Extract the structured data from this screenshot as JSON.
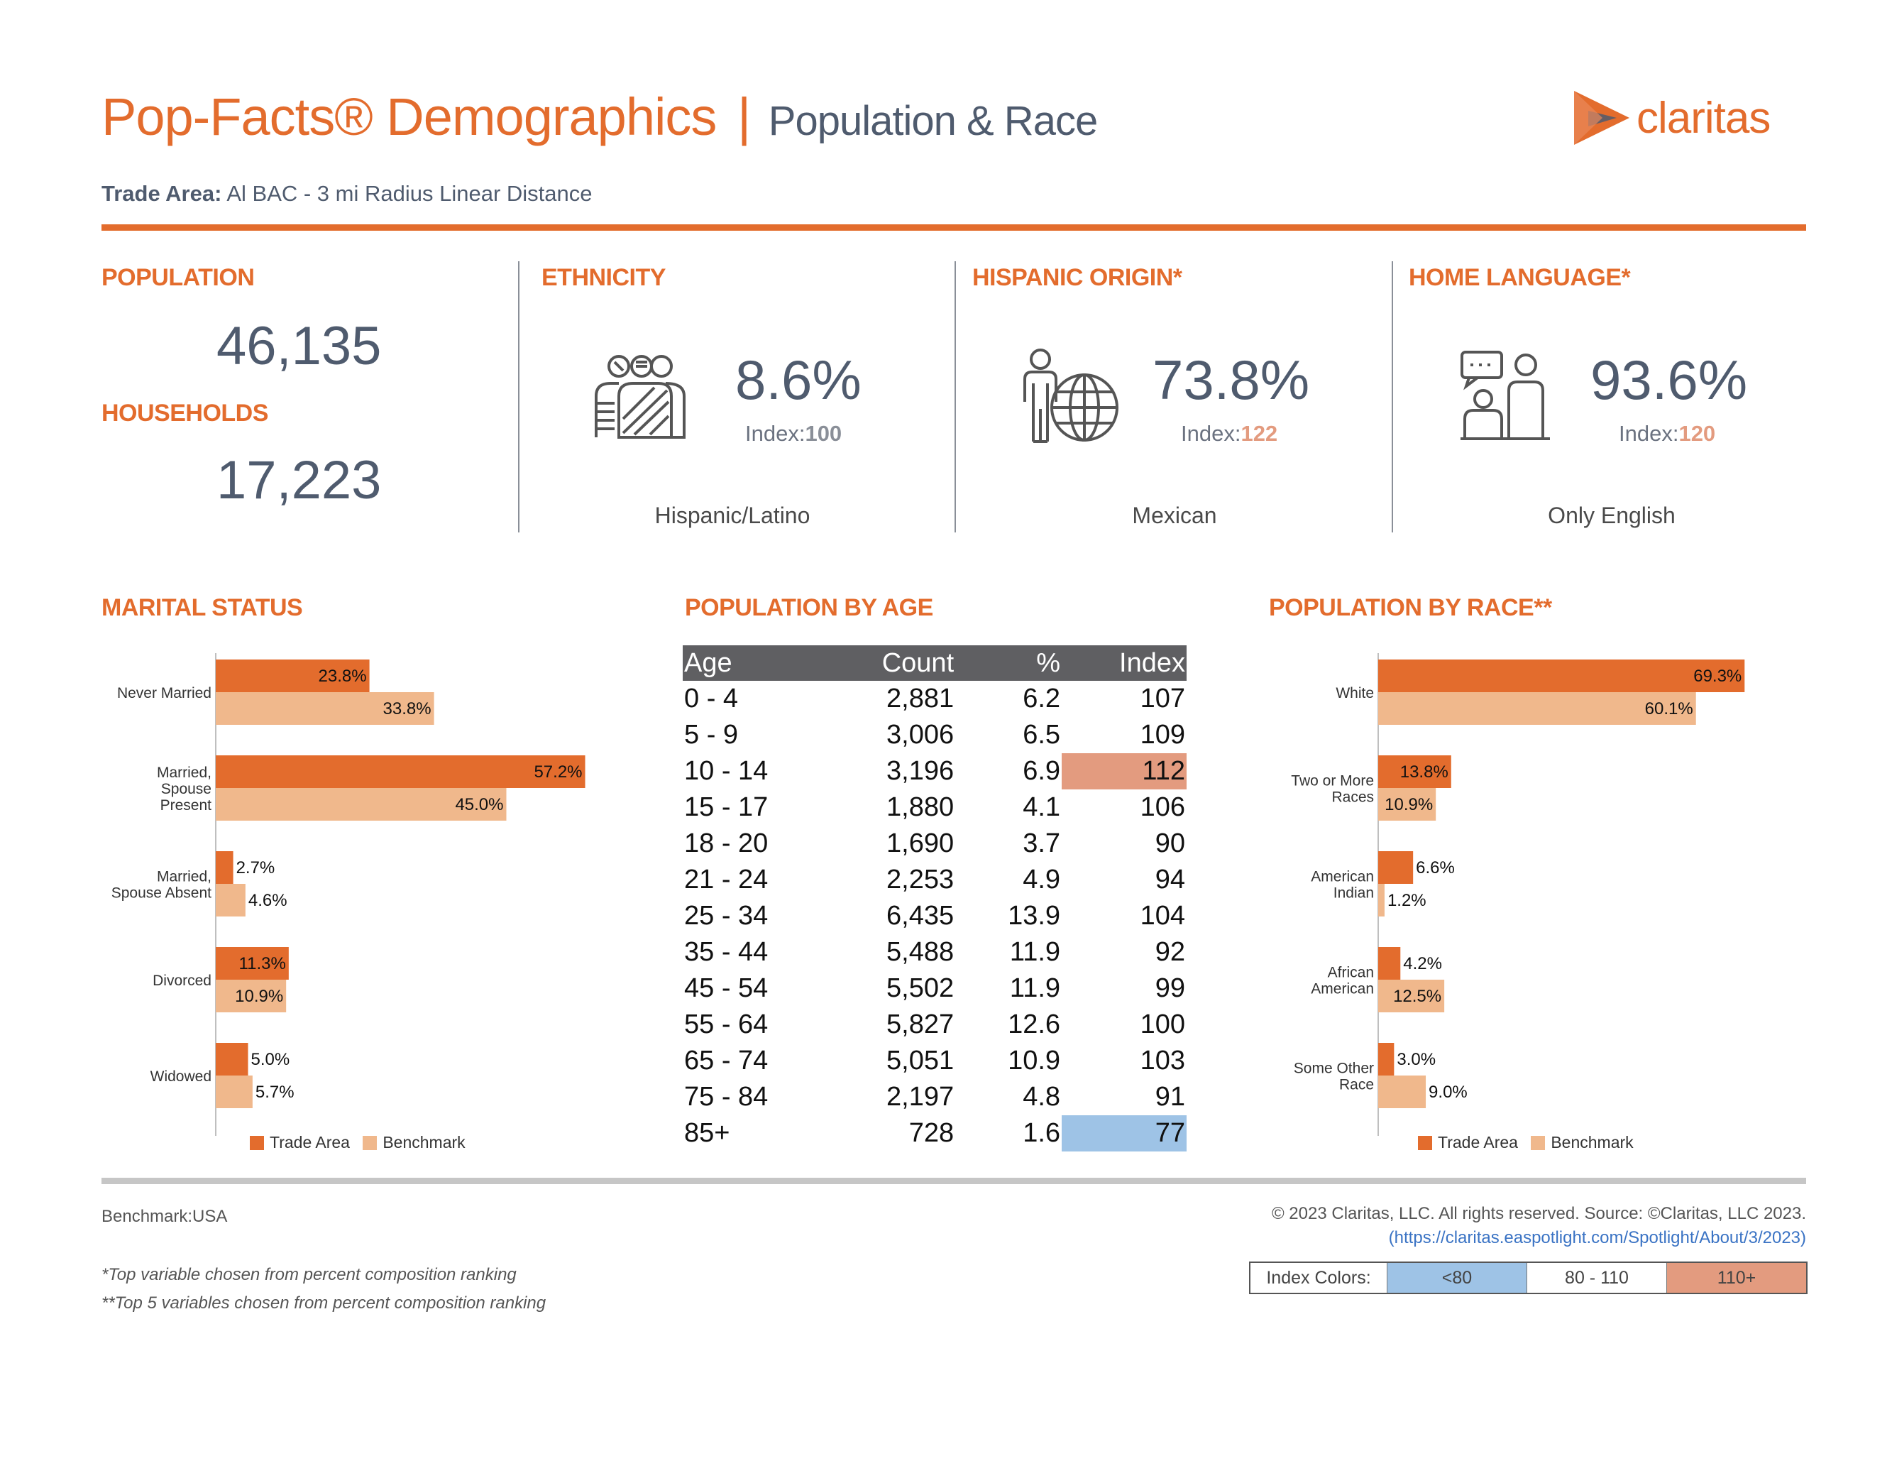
{
  "header": {
    "title": "Pop-Facts® Demographics",
    "separator": "|",
    "subtitle": "Population & Race",
    "logo_text": "claritas",
    "trade_area_label": "Trade Area:",
    "trade_area_value": "Al BAC - 3 mi Radius Linear Distance"
  },
  "colors": {
    "accent": "#e36c2d",
    "benchmark": "#f0b88c",
    "index_low": "#9ec3e6",
    "index_high": "#e39b7f",
    "header_bg": "#5f5f62"
  },
  "population": {
    "title": "POPULATION",
    "value": "46,135",
    "hh_title": "HOUSEHOLDS",
    "hh_value": "17,223"
  },
  "ethnicity": {
    "title": "ETHNICITY",
    "pct": "8.6%",
    "index_label": "Index:",
    "index_value": "100",
    "label": "Hispanic/Latino",
    "icon": "people-pattern-icon"
  },
  "hispanic": {
    "title": "HISPANIC ORIGIN*",
    "pct": "73.8%",
    "index_label": "Index:",
    "index_value": "122",
    "label": "Mexican",
    "icon": "person-globe-icon"
  },
  "language": {
    "title": "HOME LANGUAGE*",
    "pct": "93.6%",
    "index_label": "Index:",
    "index_value": "120",
    "label": "Only English",
    "icon": "conversation-icon"
  },
  "marital": {
    "title": "MARITAL STATUS",
    "legend": [
      "Trade Area",
      "Benchmark"
    ],
    "categories": [
      "Never Married",
      "Married, Spouse Present",
      "Married, Spouse Absent",
      "Divorced",
      "Widowed"
    ],
    "cat_lines": [
      [
        "Never Married"
      ],
      [
        "Married,",
        "Spouse",
        "Present"
      ],
      [
        "Married,",
        "Spouse Absent"
      ],
      [
        "Divorced"
      ],
      [
        "Widowed"
      ]
    ],
    "trade": [
      23.8,
      57.2,
      2.7,
      11.3,
      5.0
    ],
    "bench": [
      33.8,
      45.0,
      4.6,
      10.9,
      5.7
    ]
  },
  "age": {
    "title": "POPULATION BY AGE",
    "headers": [
      "Age",
      "Count",
      "%",
      "Index"
    ],
    "rows": [
      [
        "0 - 4",
        "2,881",
        "6.2",
        "107"
      ],
      [
        "5 - 9",
        "3,006",
        "6.5",
        "109"
      ],
      [
        "10 - 14",
        "3,196",
        "6.9",
        "112"
      ],
      [
        "15 - 17",
        "1,880",
        "4.1",
        "106"
      ],
      [
        "18 - 20",
        "1,690",
        "3.7",
        "90"
      ],
      [
        "21 - 24",
        "2,253",
        "4.9",
        "94"
      ],
      [
        "25 - 34",
        "6,435",
        "13.9",
        "104"
      ],
      [
        "35 - 44",
        "5,488",
        "11.9",
        "92"
      ],
      [
        "45 - 54",
        "5,502",
        "11.9",
        "99"
      ],
      [
        "55 - 64",
        "5,827",
        "12.6",
        "100"
      ],
      [
        "65 - 74",
        "5,051",
        "10.9",
        "103"
      ],
      [
        "75 - 84",
        "2,197",
        "4.8",
        "91"
      ],
      [
        "85+",
        "728",
        "1.6",
        "77"
      ]
    ]
  },
  "race": {
    "title": "POPULATION BY RACE**",
    "legend": [
      "Trade Area",
      "Benchmark"
    ],
    "categories": [
      "White",
      "Two or More Races",
      "American Indian",
      "African American",
      "Some Other Race"
    ],
    "cat_lines": [
      [
        "White"
      ],
      [
        "Two or More",
        "Races"
      ],
      [
        "American",
        "Indian"
      ],
      [
        "African",
        "American"
      ],
      [
        "Some Other",
        "Race"
      ]
    ],
    "trade": [
      69.3,
      13.8,
      6.6,
      4.2,
      3.0
    ],
    "bench": [
      60.1,
      10.9,
      1.2,
      12.5,
      9.0
    ]
  },
  "footer": {
    "benchmark": "Benchmark:USA",
    "note1": "*Top variable chosen from percent composition ranking",
    "note2": "**Top 5 variables chosen from percent composition ranking",
    "copyright": "© 2023 Claritas, LLC. All rights reserved. Source: ©Claritas, LLC 2023.",
    "link": "(https://claritas.easpotlight.com/Spotlight/About/3/2023)",
    "index_colors_label": "Index Colors:",
    "index_low": "<80",
    "index_mid": "80 - 110",
    "index_high": "110+"
  },
  "chart_data": [
    {
      "type": "bar",
      "title": "MARITAL STATUS",
      "categories": [
        "Never Married",
        "Married, Spouse Present",
        "Married, Spouse Absent",
        "Divorced",
        "Widowed"
      ],
      "series": [
        {
          "name": "Trade Area",
          "values": [
            23.8,
            57.2,
            2.7,
            11.3,
            5.0
          ]
        },
        {
          "name": "Benchmark",
          "values": [
            33.8,
            45.0,
            4.6,
            10.9,
            5.7
          ]
        }
      ],
      "orientation": "horizontal",
      "legend": "bottom"
    },
    {
      "type": "bar",
      "title": "POPULATION BY RACE**",
      "categories": [
        "White",
        "Two or More Races",
        "American Indian",
        "African American",
        "Some Other Race"
      ],
      "series": [
        {
          "name": "Trade Area",
          "values": [
            69.3,
            13.8,
            6.6,
            4.2,
            3.0
          ]
        },
        {
          "name": "Benchmark",
          "values": [
            60.1,
            10.9,
            1.2,
            12.5,
            9.0
          ]
        }
      ],
      "orientation": "horizontal",
      "legend": "bottom"
    }
  ]
}
